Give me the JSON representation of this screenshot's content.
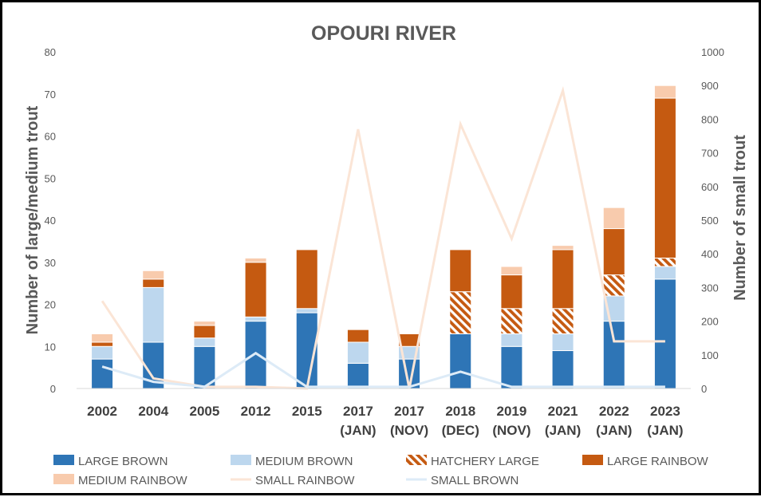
{
  "chart_data": {
    "type": "bar",
    "title": "OPOURI RIVER",
    "ylabel": "Number of large/medium trout",
    "y2label": "Number of small trout",
    "ylim": [
      0,
      80
    ],
    "y2lim": [
      0,
      1000
    ],
    "yticks": [
      "0",
      "10",
      "20",
      "30",
      "40",
      "50",
      "60",
      "70",
      "80"
    ],
    "y2ticks": [
      "0",
      "100",
      "200",
      "300",
      "400",
      "500",
      "600",
      "700",
      "800",
      "900",
      "1000"
    ],
    "grid": false,
    "legend_position": "bottom",
    "categories": [
      [
        "2002"
      ],
      [
        "2004"
      ],
      [
        "2005"
      ],
      [
        "2012"
      ],
      [
        "2015"
      ],
      [
        "2017",
        "(JAN)"
      ],
      [
        "2017",
        "(NOV)"
      ],
      [
        "2018",
        "(DEC)"
      ],
      [
        "2019",
        "(NOV)"
      ],
      [
        "2021",
        "(JAN)"
      ],
      [
        "2022",
        "(JAN)"
      ],
      [
        "2023",
        "(JAN)"
      ]
    ],
    "series": [
      {
        "name": "LARGE BROWN",
        "kind": "bar",
        "axis": "left",
        "color": "#2e75b6",
        "pattern": "solid",
        "values": [
          7,
          11,
          10,
          16,
          18,
          6,
          7,
          13,
          10,
          9,
          16,
          26
        ]
      },
      {
        "name": "MEDIUM BROWN",
        "kind": "bar",
        "axis": "left",
        "color": "#bdd7ee",
        "pattern": "solid",
        "values": [
          3,
          13,
          2,
          1,
          1,
          5,
          3,
          0,
          3,
          4,
          6,
          3
        ]
      },
      {
        "name": "HATCHERY LARGE",
        "kind": "bar",
        "axis": "left",
        "color": "#c55a11",
        "pattern": "hatch",
        "values": [
          0,
          0,
          0,
          0,
          0,
          0,
          0,
          10,
          6,
          6,
          5,
          2
        ]
      },
      {
        "name": "LARGE RAINBOW",
        "kind": "bar",
        "axis": "left",
        "color": "#c55a11",
        "pattern": "solid",
        "values": [
          1,
          2,
          3,
          13,
          14,
          3,
          3,
          10,
          8,
          14,
          11,
          38
        ]
      },
      {
        "name": "MEDIUM RAINBOW",
        "kind": "bar",
        "axis": "left",
        "color": "#f8cbad",
        "pattern": "solid",
        "values": [
          2,
          2,
          1,
          1,
          0,
          0,
          0,
          0,
          2,
          1,
          5,
          3
        ]
      },
      {
        "name": "SMALL RAINBOW",
        "kind": "line",
        "axis": "right",
        "color": "#fbe5d6",
        "values": [
          260,
          30,
          5,
          5,
          0,
          770,
          0,
          785,
          445,
          885,
          140,
          140
        ]
      },
      {
        "name": "SMALL BROWN",
        "kind": "line",
        "axis": "right",
        "color": "#ddebf7",
        "values": [
          65,
          20,
          5,
          105,
          5,
          5,
          5,
          50,
          5,
          5,
          5,
          5
        ]
      }
    ]
  }
}
